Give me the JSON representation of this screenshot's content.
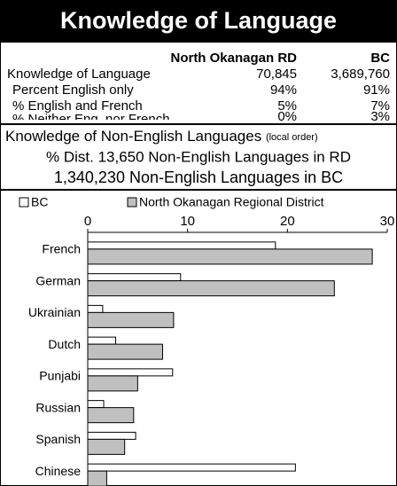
{
  "header": {
    "title": "Knowledge of Language"
  },
  "table": {
    "columns": [
      "North Okanagan RD",
      "BC"
    ],
    "rows": [
      [
        "Knowledge of Language",
        "70,845",
        "3,689,760"
      ],
      [
        "Percent English only",
        "94%",
        "91%"
      ],
      [
        "% English and French",
        "5%",
        "7%"
      ],
      [
        "% Neither Eng. nor French",
        "0%",
        "3%"
      ]
    ]
  },
  "section": {
    "title": "Knowledge of Non-English Languages",
    "note": "(local order)",
    "lines": [
      "% Dist. 13,650 Non-English Languages in RD",
      "1,340,230 Non-English Languages in BC"
    ]
  },
  "chart_data": {
    "type": "bar",
    "orientation": "horizontal",
    "categories": [
      "French",
      "German",
      "Ukrainian",
      "Dutch",
      "Punjabi",
      "Russian",
      "Spanish",
      "Chinese"
    ],
    "series": [
      {
        "name": "BC",
        "color": "#ffffff",
        "values": [
          18.8,
          9.3,
          1.5,
          2.8,
          8.5,
          1.6,
          4.8,
          20.8
        ]
      },
      {
        "name": "North Okanagan Regional District",
        "color": "#c0c0c0",
        "values": [
          28.5,
          24.7,
          8.6,
          7.5,
          5.0,
          4.6,
          3.7,
          1.9
        ]
      }
    ],
    "xlim": [
      0,
      30
    ],
    "xticks": [
      0,
      10,
      20,
      30
    ],
    "legend": "top"
  }
}
